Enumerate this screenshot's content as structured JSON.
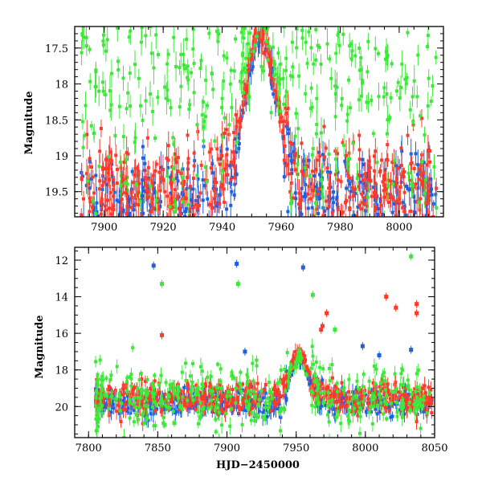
{
  "chart_data": [
    {
      "type": "scatter",
      "title": "",
      "xlabel": "",
      "ylabel": "Magnitude",
      "xlim": [
        7890,
        8015
      ],
      "ylim": [
        19.85,
        17.2
      ],
      "y_inverted": true,
      "xticks": [
        7900,
        7920,
        7940,
        7960,
        7980,
        8000
      ],
      "yticks": [
        17.5,
        18,
        18.5,
        19,
        19.5
      ],
      "xtick_labels": [
        "7900",
        "7920",
        "7940",
        "7960",
        "7980",
        "8000"
      ],
      "ytick_labels": [
        "17.5",
        "18",
        "18.5",
        "19",
        "19.5"
      ],
      "grid": false,
      "legend": "none",
      "error_bars": true,
      "series": [
        {
          "color": "#2060e0",
          "baseline": 19.6,
          "peak_mag": 17.4,
          "peak_x": 7953,
          "scatter": 0.3,
          "n_points": 420
        },
        {
          "color": "#ff3a2a",
          "baseline": 19.45,
          "peak_mag": 17.3,
          "peak_x": 7953,
          "scatter": 0.35,
          "n_points": 520
        },
        {
          "color": "#3ee83a",
          "baseline": 18.6,
          "peak_mag": 17.3,
          "peak_x": 7953,
          "scatter": 0.8,
          "n_points": 360
        }
      ]
    },
    {
      "type": "scatter",
      "title": "",
      "xlabel": "HJD−2450000",
      "ylabel": "Magnitude",
      "xlim": [
        7790,
        8050
      ],
      "ylim": [
        21.7,
        11.3
      ],
      "y_inverted": true,
      "xticks": [
        7800,
        7850,
        7900,
        7950,
        8000,
        8050
      ],
      "yticks": [
        12,
        14,
        16,
        18,
        20
      ],
      "xtick_labels": [
        "7800",
        "7850",
        "7900",
        "7950",
        "8000",
        "8050"
      ],
      "ytick_labels": [
        "12",
        "14",
        "16",
        "18",
        "20"
      ],
      "grid": false,
      "legend": "none",
      "error_bars": true,
      "series": [
        {
          "color": "#2060e0",
          "baseline": 19.8,
          "peak_mag": 17.4,
          "peak_x": 7952,
          "scatter": 0.35,
          "n_points": 500,
          "outliers": [
            [
              7847,
              12.3
            ],
            [
              7907,
              12.2
            ],
            [
              7955,
              12.4
            ],
            [
              7913,
              17.0
            ],
            [
              7998,
              16.7
            ],
            [
              8010,
              17.2
            ],
            [
              8033,
              16.9
            ]
          ]
        },
        {
          "color": "#ff3a2a",
          "baseline": 19.5,
          "peak_mag": 17.1,
          "peak_x": 7952,
          "scatter": 0.4,
          "n_points": 600,
          "outliers": [
            [
              7853,
              16.1
            ],
            [
              8015,
              14.0
            ],
            [
              8022,
              14.6
            ],
            [
              8037,
              14.4
            ],
            [
              8037,
              14.9
            ],
            [
              7972,
              14.9
            ],
            [
              7969,
              15.6
            ],
            [
              7968,
              15.8
            ]
          ]
        },
        {
          "color": "#3ee83a",
          "baseline": 19.6,
          "peak_mag": 17.4,
          "peak_x": 7952,
          "scatter": 0.9,
          "n_points": 420,
          "outliers": [
            [
              7853,
              13.3
            ],
            [
              7908,
              13.3
            ],
            [
              7962,
              13.9
            ],
            [
              7978,
              15.8
            ],
            [
              8033,
              11.8
            ],
            [
              7862,
              20.9
            ],
            [
              7855,
              21.0
            ]
          ]
        }
      ]
    }
  ]
}
